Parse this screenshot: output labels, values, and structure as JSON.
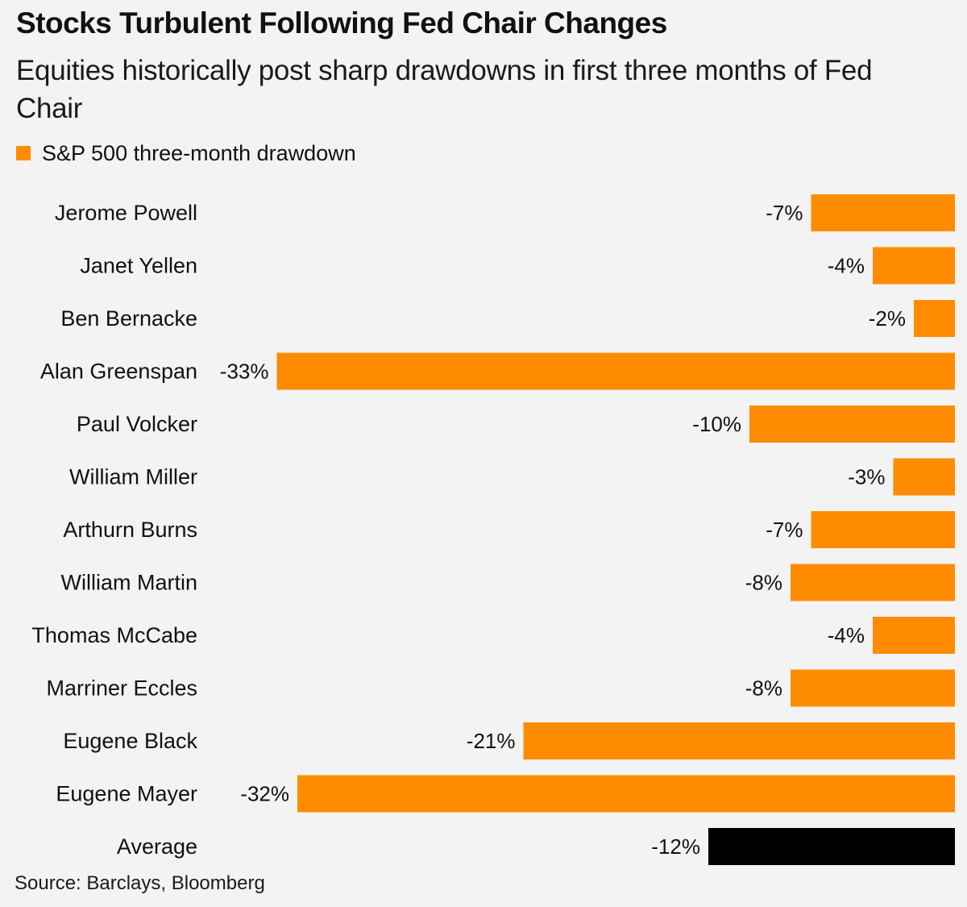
{
  "title": "Stocks Turbulent Following Fed Chair Changes",
  "subtitle": "Equities historically post sharp drawdowns in first three months of Fed Chair",
  "legend": {
    "label": "S&P 500 three-month drawdown",
    "color": "#ff8c00"
  },
  "source": "Source: Barclays, Bloomberg",
  "colors": {
    "series": "#ff8c00",
    "average": "#000000"
  },
  "chart_data": {
    "type": "bar",
    "orientation": "horizontal",
    "categories": [
      "Jerome Powell",
      "Janet Yellen",
      "Ben Bernacke",
      "Alan Greenspan",
      "Paul Volcker",
      "William Miller",
      "Arthurn Burns",
      "William Martin",
      "Thomas McCabe",
      "Marriner Eccles",
      "Eugene Black",
      "Eugene Mayer",
      "Average"
    ],
    "series": [
      {
        "name": "S&P 500 three-month drawdown",
        "values": [
          -7,
          -4,
          -2,
          -33,
          -10,
          -3,
          -7,
          -8,
          -4,
          -8,
          -21,
          -32,
          -12
        ]
      }
    ],
    "value_labels": [
      "-7%",
      "-4%",
      "-2%",
      "-33%",
      "-10%",
      "-3%",
      "-7%",
      "-8%",
      "-4%",
      "-8%",
      "-21%",
      "-32%",
      "-12%"
    ],
    "highlight_category": "Average",
    "xlim": [
      -35,
      0
    ],
    "grid": false,
    "legend_position": "top-left"
  }
}
